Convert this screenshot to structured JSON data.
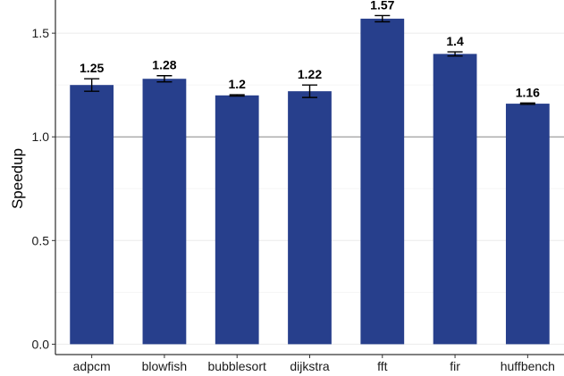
{
  "chart_data": {
    "type": "bar",
    "title": "",
    "xlabel": "",
    "ylabel": "Speedup",
    "categories": [
      "adpcm",
      "blowfish",
      "bubblesort",
      "dijkstra",
      "fft",
      "fir",
      "huffbench"
    ],
    "values": [
      1.25,
      1.28,
      1.2,
      1.22,
      1.57,
      1.4,
      1.16
    ],
    "data_labels": [
      "1.25",
      "1.28",
      "1.2",
      "1.22",
      "1.57",
      "1.4",
      "1.16"
    ],
    "error_bars": [
      {
        "low": 1.22,
        "high": 1.28
      },
      {
        "low": 1.265,
        "high": 1.295
      },
      {
        "low": 1.197,
        "high": 1.203
      },
      {
        "low": 1.19,
        "high": 1.25
      },
      {
        "low": 1.555,
        "high": 1.585
      },
      {
        "low": 1.39,
        "high": 1.41
      },
      {
        "low": 1.157,
        "high": 1.163
      }
    ],
    "reference_line": 1.0,
    "ylim": [
      -0.05,
      1.66
    ],
    "yticks": [
      0.0,
      0.5,
      1.0,
      1.5
    ],
    "ytick_labels": [
      "0.0",
      "0.5",
      "1.0",
      "1.5"
    ],
    "grid": true,
    "legend": "none",
    "colors": {
      "bar": "#273f8c",
      "reference_line": "#8c8c8c",
      "error_bar": "#000000"
    }
  }
}
